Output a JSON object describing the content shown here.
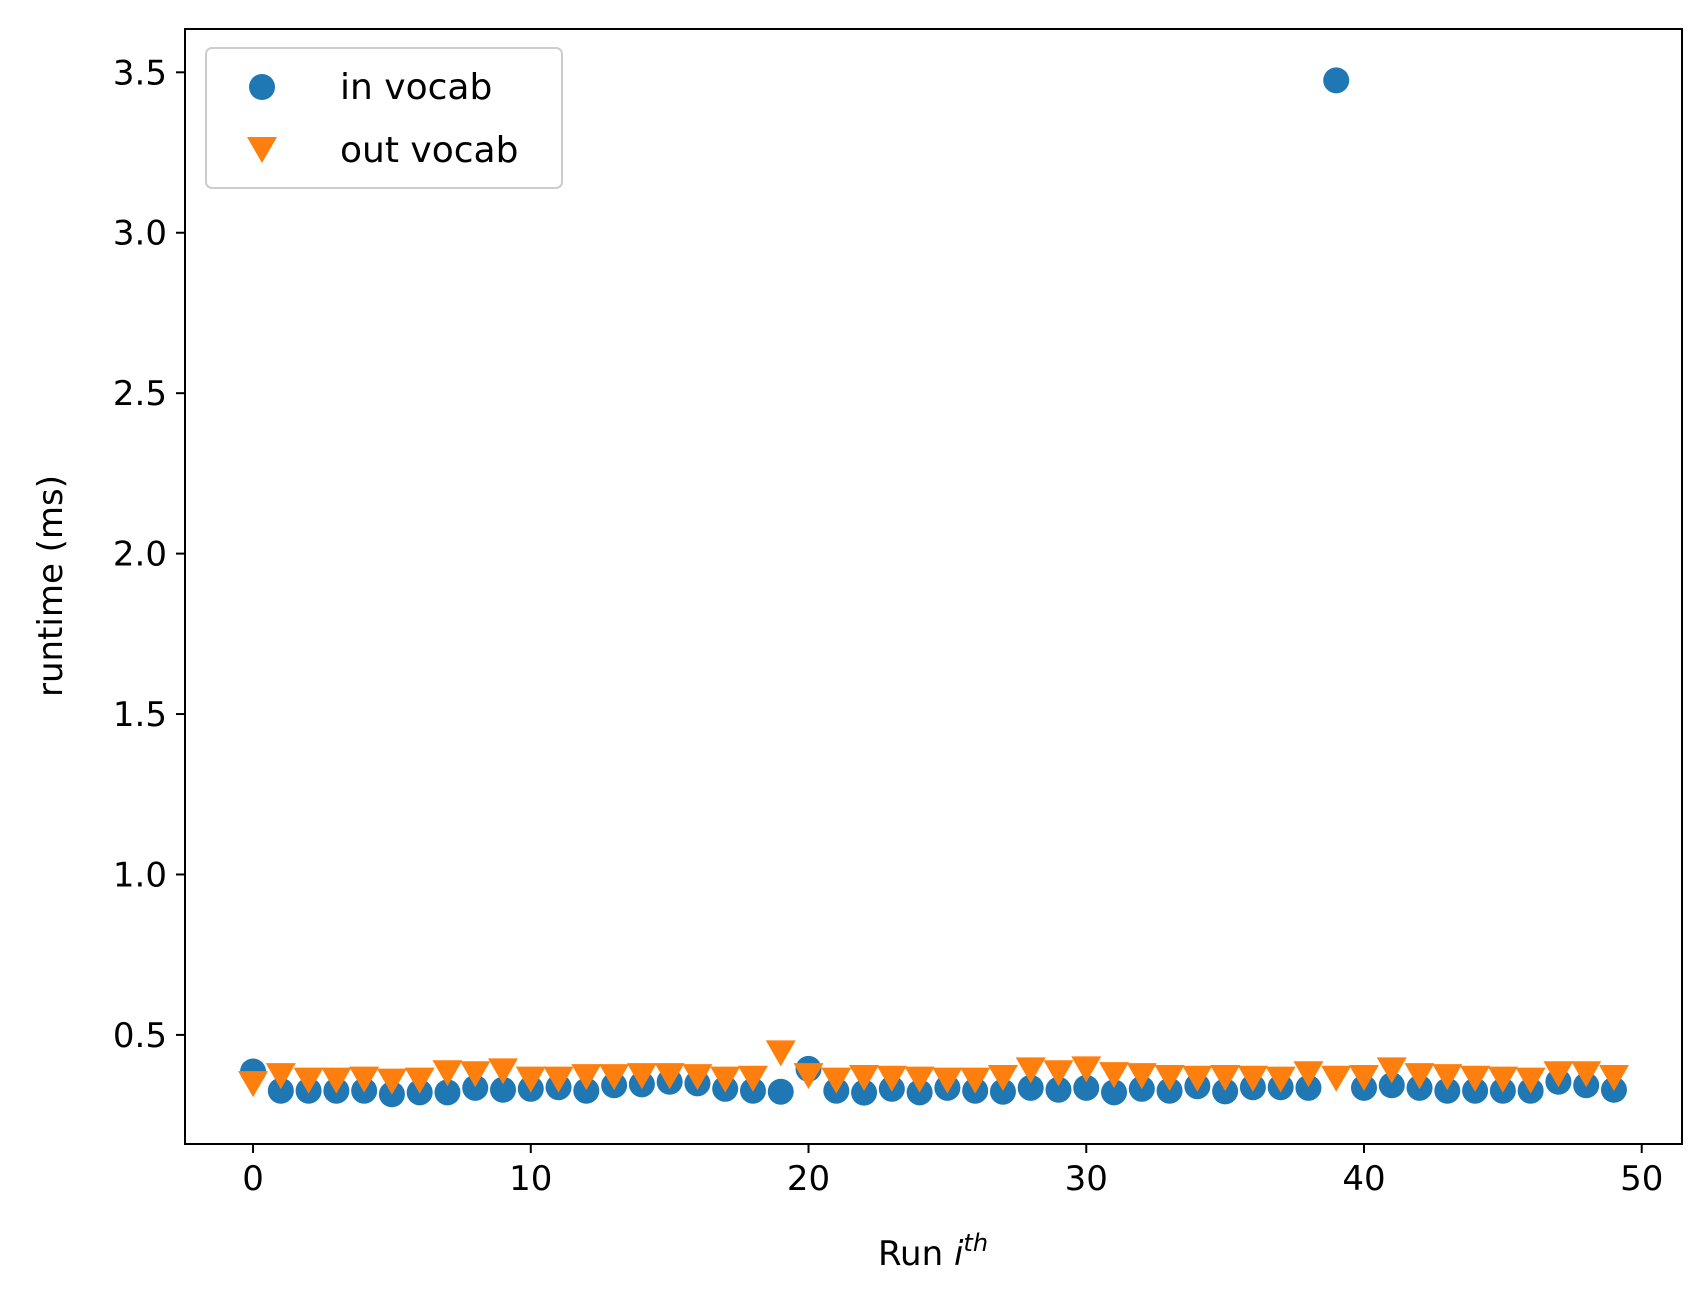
{
  "chart_data": {
    "type": "scatter",
    "xlabel": "Run",
    "xlabel_math": "i",
    "xlabel_math_sup": "th",
    "ylabel": "runtime (ms)",
    "xlim": [
      -2.45,
      51.45
    ],
    "ylim": [
      0.16,
      3.635
    ],
    "xticks": [
      0,
      10,
      20,
      30,
      40,
      50
    ],
    "xtick_labels": [
      "0",
      "10",
      "20",
      "30",
      "40",
      "50"
    ],
    "yticks": [
      0.5,
      1.0,
      1.5,
      2.0,
      2.5,
      3.0,
      3.5
    ],
    "ytick_labels": [
      "0.5",
      "1.0",
      "1.5",
      "2.0",
      "2.5",
      "3.0",
      "3.5"
    ],
    "grid": false,
    "legend_position": "top-left",
    "x": [
      0,
      1,
      2,
      3,
      4,
      5,
      6,
      7,
      8,
      9,
      10,
      11,
      12,
      13,
      14,
      15,
      16,
      17,
      18,
      19,
      20,
      21,
      22,
      23,
      24,
      25,
      26,
      27,
      28,
      29,
      30,
      31,
      32,
      33,
      34,
      35,
      36,
      37,
      38,
      39,
      40,
      41,
      42,
      43,
      44,
      45,
      46,
      47,
      48,
      49
    ],
    "series": [
      {
        "name": "in vocab",
        "marker": "circle",
        "color": "#1f77b4",
        "values": [
          0.386,
          0.326,
          0.326,
          0.326,
          0.326,
          0.315,
          0.321,
          0.321,
          0.335,
          0.329,
          0.332,
          0.337,
          0.326,
          0.343,
          0.346,
          0.354,
          0.349,
          0.332,
          0.326,
          0.323,
          0.394,
          0.326,
          0.32,
          0.332,
          0.321,
          0.335,
          0.326,
          0.323,
          0.335,
          0.329,
          0.335,
          0.321,
          0.332,
          0.326,
          0.34,
          0.324,
          0.337,
          0.337,
          0.335,
          3.475,
          0.335,
          0.343,
          0.335,
          0.326,
          0.326,
          0.326,
          0.326,
          0.354,
          0.343,
          0.329
        ]
      },
      {
        "name": "out vocab",
        "marker": "triangle-down",
        "color": "#ff7f0e",
        "values": [
          0.359,
          0.384,
          0.37,
          0.37,
          0.373,
          0.367,
          0.37,
          0.393,
          0.39,
          0.399,
          0.373,
          0.373,
          0.381,
          0.381,
          0.384,
          0.384,
          0.381,
          0.373,
          0.376,
          0.455,
          0.384,
          0.37,
          0.378,
          0.376,
          0.373,
          0.37,
          0.37,
          0.378,
          0.402,
          0.393,
          0.405,
          0.387,
          0.384,
          0.378,
          0.376,
          0.378,
          0.376,
          0.373,
          0.39,
          0.376,
          0.378,
          0.402,
          0.384,
          0.381,
          0.376,
          0.373,
          0.37,
          0.39,
          0.39,
          0.378
        ]
      }
    ]
  }
}
